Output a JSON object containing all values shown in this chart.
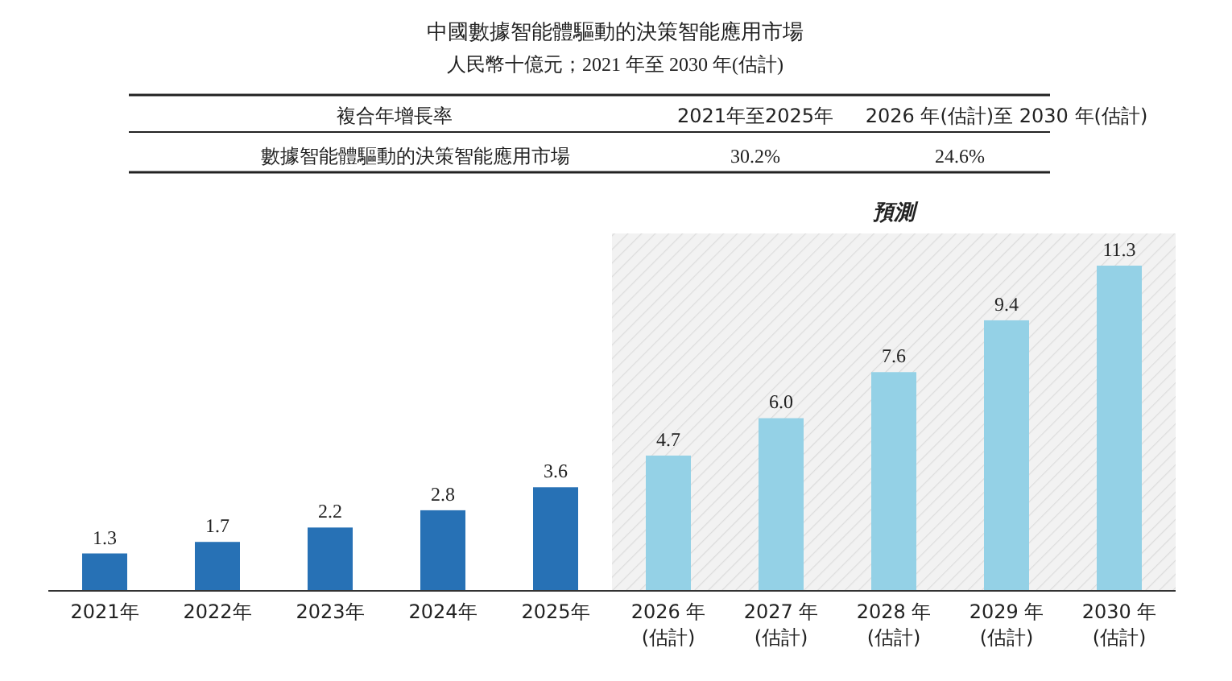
{
  "chart_data": {
    "type": "bar",
    "title": "中國數據智能體驅動的決策智能應用市場",
    "subtitle": "人民幣十億元；2021 年至 2030 年(估計)",
    "categories": [
      "2021年",
      "2022年",
      "2023年",
      "2024年",
      "2025年",
      "2026 年(估計)",
      "2027 年(估計)",
      "2028 年(估計)",
      "2029 年(估計)",
      "2030 年(估計)"
    ],
    "values": [
      1.3,
      1.7,
      2.2,
      2.8,
      3.6,
      4.7,
      6.0,
      7.6,
      9.4,
      11.3
    ],
    "colors": [
      "#2771b5",
      "#2771b5",
      "#2771b5",
      "#2771b5",
      "#2771b5",
      "#94d1e6",
      "#94d1e6",
      "#94d1e6",
      "#94d1e6",
      "#94d1e6"
    ],
    "value_labels": [
      "1.3",
      "1.7",
      "2.2",
      "2.8",
      "3.6",
      "4.7",
      "6.0",
      "7.6",
      "9.4",
      "11.3"
    ],
    "bands": [
      {
        "axis": "x",
        "from": "2026 年(估計)",
        "to": "2030 年(估計)",
        "label": "預測",
        "color": "#f2f2f2"
      }
    ],
    "annotations": [
      "複合年增長率",
      "2021年至2025年",
      "2026 年(估計)至 2030 年(估計)",
      "數據智能體驅動的決策智能應用市場",
      "30.2%",
      "24.6%"
    ]
  }
}
